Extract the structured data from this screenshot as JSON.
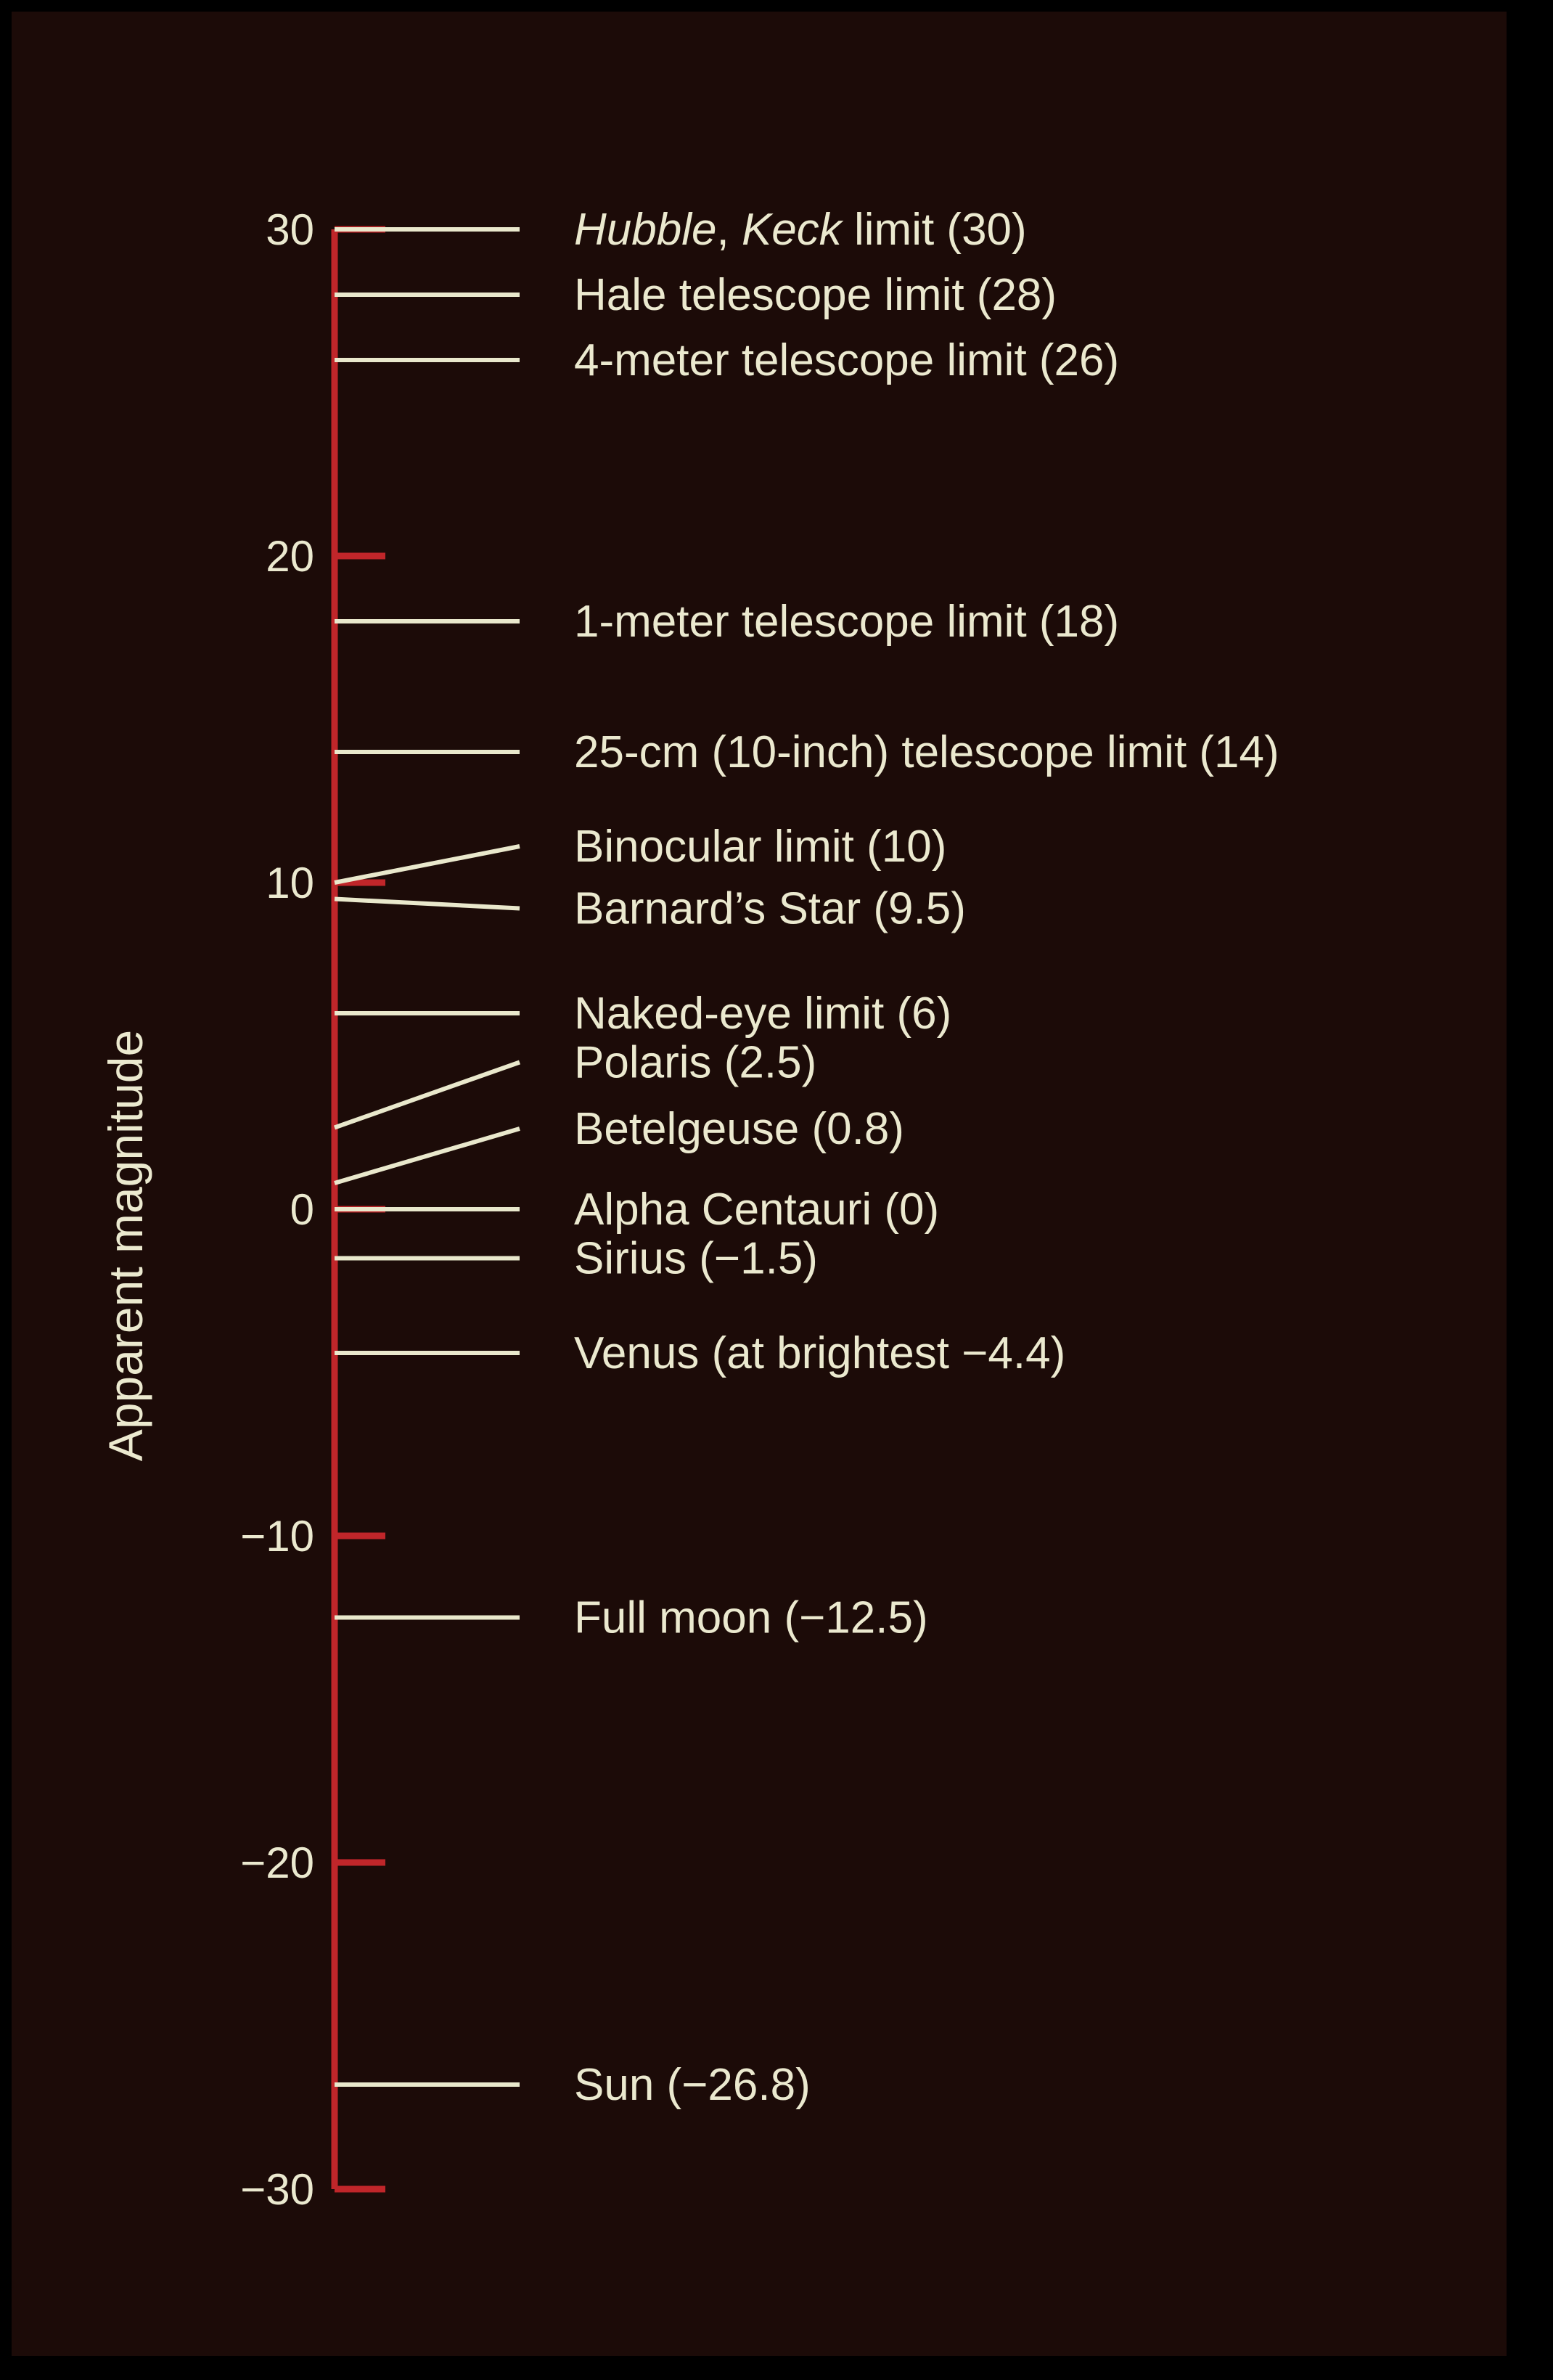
{
  "chart_data": {
    "type": "number-line",
    "ylabel": "Apparent magnitude",
    "ylim": [
      -30,
      30
    ],
    "ticks": [
      30,
      20,
      10,
      0,
      -10,
      -20,
      -30
    ],
    "tick_labels": [
      "30",
      "20",
      "10",
      "0",
      "−10",
      "−20",
      "−30"
    ],
    "entries": [
      {
        "value": 30,
        "label_italic_1": "Hubble",
        "label_sep": ", ",
        "label_italic_2": "Keck",
        "label": " limit (30)"
      },
      {
        "value": 28,
        "label": "Hale telescope limit (28)"
      },
      {
        "value": 26,
        "label": "4-meter telescope limit (26)"
      },
      {
        "value": 18,
        "label": "1-meter telescope limit (18)"
      },
      {
        "value": 14,
        "label": "25-cm (10-inch) telescope limit (14)"
      },
      {
        "value": 10,
        "label": "Binocular limit (10)"
      },
      {
        "value": 9.5,
        "label": "Barnard’s Star (9.5)"
      },
      {
        "value": 6,
        "label": "Naked-eye limit (6)"
      },
      {
        "value": 2.5,
        "label": "Polaris (2.5)"
      },
      {
        "value": 0.8,
        "label": "Betelgeuse (0.8)"
      },
      {
        "value": 0,
        "label": "Alpha Centauri (0)"
      },
      {
        "value": -1.5,
        "label": "Sirius (−1.5)"
      },
      {
        "value": -4.4,
        "label": "Venus (at brightest −4.4)"
      },
      {
        "value": -12.5,
        "label": "Full moon (−12.5)"
      },
      {
        "value": -26.8,
        "label": "Sun (−26.8)"
      }
    ],
    "colors": {
      "axis": "#c0262a",
      "marker": "#e9e8cc",
      "text": "#ebe9cf",
      "background": "#1c0b08"
    }
  }
}
